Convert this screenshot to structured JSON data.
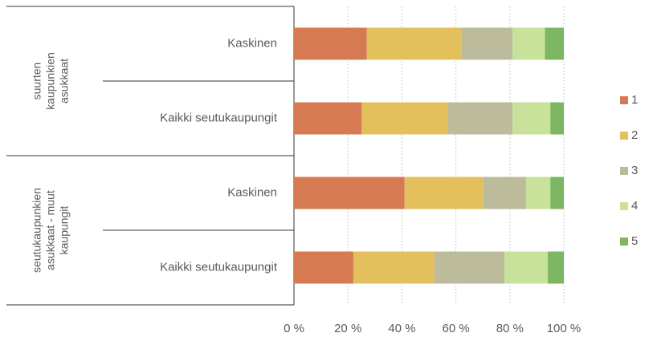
{
  "chart_data": {
    "type": "stacked-bar-horizontal",
    "groups": [
      {
        "label": "suurten kaupunkien asukkaat",
        "categories": [
          "Kaskinen",
          "Kaikki seutukaupungit"
        ]
      },
      {
        "label": "seutukaupunkien asukkaat - muut kaupungit",
        "categories": [
          "Kaskinen",
          "Kaikki seutukaupungit"
        ]
      }
    ],
    "series": [
      {
        "name": "1",
        "color": "#d57a52",
        "values": [
          27,
          25,
          41,
          22
        ]
      },
      {
        "name": "2",
        "color": "#e4c05c",
        "values": [
          35,
          32,
          29,
          30
        ]
      },
      {
        "name": "3",
        "color": "#bcbb9c",
        "values": [
          19,
          24,
          16,
          26
        ]
      },
      {
        "name": "4",
        "color": "#c9e29b",
        "values": [
          12,
          14,
          9,
          16
        ]
      },
      {
        "name": "5",
        "color": "#7db763",
        "values": [
          7,
          5,
          5,
          6
        ]
      }
    ],
    "xlim": [
      0,
      100
    ],
    "xticks": [
      {
        "value": 0,
        "label": "0 %"
      },
      {
        "value": 20,
        "label": "20 %"
      },
      {
        "value": 40,
        "label": "40 %"
      },
      {
        "value": 60,
        "label": "60 %"
      },
      {
        "value": 80,
        "label": "80 %"
      },
      {
        "value": 100,
        "label": "100 %"
      }
    ],
    "grid": true,
    "legend": "right"
  }
}
